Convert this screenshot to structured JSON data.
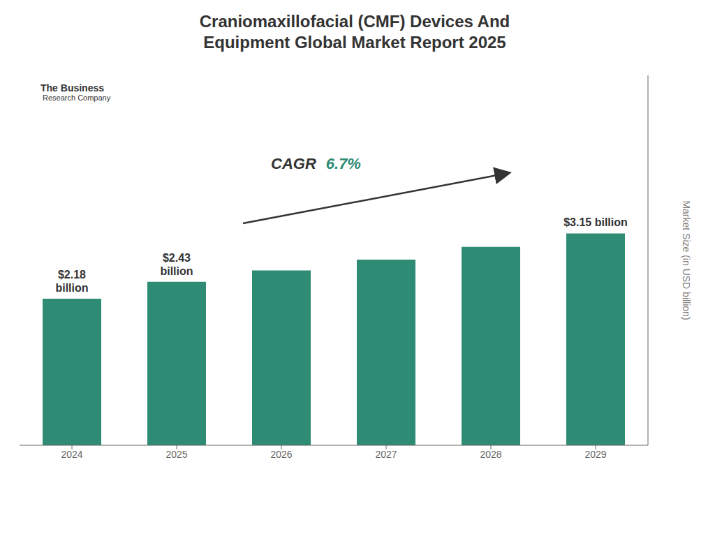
{
  "chart_data": {
    "type": "bar",
    "title": "Craniomaxillofacial (CMF) Devices And\nEquipment Global Market Report 2025",
    "y_label": "Market Size (in USD billion)",
    "categories": [
      "2024",
      "2025",
      "2026",
      "2027",
      "2028",
      "2029"
    ],
    "values": [
      2.18,
      2.43,
      2.6,
      2.76,
      2.95,
      3.15
    ],
    "value_labels": [
      "$2.18\nbillion",
      "$2.43\nbillion",
      null,
      null,
      null,
      "$3.15 billion"
    ],
    "color": "#2e8b74",
    "ylim": [
      0,
      5.5
    ],
    "tick_labels": "x",
    "grid": false,
    "annotations": [
      "CAGR",
      "6.7%",
      "The Business",
      "Research Company"
    ]
  }
}
